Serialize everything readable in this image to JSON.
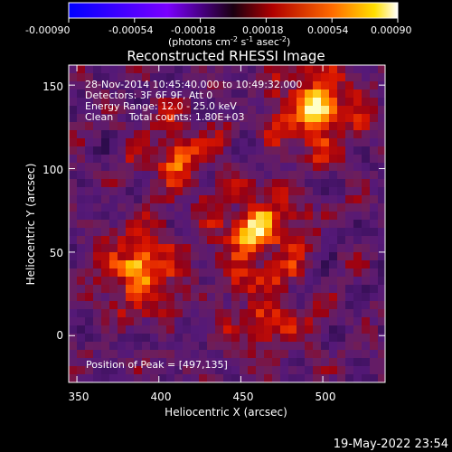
{
  "colorbar": {
    "ticks": [
      "-0.00090",
      "-0.00054",
      "-0.00018",
      "0.00018",
      "0.00054",
      "0.00090"
    ],
    "units_main": "(photons cm",
    "units_sup1": "-2",
    "units_mid": " s",
    "units_sup2": "-1",
    "units_tail": " asec",
    "units_sup3": "-2",
    "units_close": ")"
  },
  "plot": {
    "title": "Reconstructed RHESSI Image",
    "info_lines": [
      "28-Nov-2014 10:45:40.000 to 10:49:32.000",
      "Detectors: 3F 6F 9F, Att 0",
      "Energy Range: 12.0 - 25.0 keV",
      "Clean     Total counts: 1.80E+03"
    ],
    "peak_text": "Position of Peak = [497,135]",
    "xlabel": "Heliocentric X (arcsec)",
    "ylabel": "Heliocentric Y (arcsec)",
    "x_ticks": [
      "350",
      "400",
      "450",
      "500"
    ],
    "y_ticks": [
      "150",
      "100",
      "50",
      "0"
    ],
    "x_tick_values": [
      350,
      400,
      450,
      500
    ],
    "y_tick_values": [
      150,
      100,
      50,
      0
    ],
    "xlim": [
      345,
      538
    ],
    "ylim": [
      -28,
      162
    ],
    "sources": [
      {
        "x": 497,
        "y": 135,
        "level": 1.0
      },
      {
        "x": 460,
        "y": 62,
        "level": 0.95
      },
      {
        "x": 388,
        "y": 40,
        "level": 0.85
      },
      {
        "x": 412,
        "y": 107,
        "level": 0.55
      },
      {
        "x": 465,
        "y": 10,
        "level": 0.5
      }
    ]
  },
  "footer": {
    "date": "19-May-2022 23:54"
  }
}
